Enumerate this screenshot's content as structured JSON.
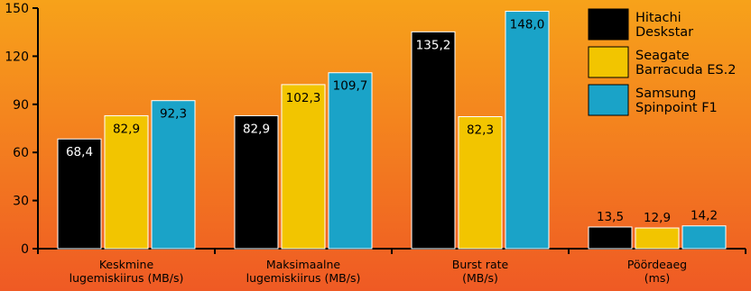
{
  "colors": {
    "bg_top": "#f7a21a",
    "bg_bottom": "#ef5a24",
    "axis": "#000000",
    "hitachi": "#000000",
    "seagate": "#f2c500",
    "samsung": "#1aa3c8",
    "bar_stroke": "#ffffff"
  },
  "chart_data": {
    "type": "bar",
    "ylim": [
      0,
      150
    ],
    "yticks": [
      0,
      30,
      60,
      90,
      120,
      150
    ],
    "categories": [
      [
        "Keskmine",
        "lugemiskiirus (MB/s)"
      ],
      [
        "Maksimaalne",
        "lugemiskiirus (MB/s)"
      ],
      [
        "Burst rate",
        "(MB/s)"
      ],
      [
        "Pöördeaeg",
        "(ms)"
      ]
    ],
    "series": [
      {
        "name": "Hitachi Deskstar",
        "legend_lines": [
          "Hitachi",
          "Deskstar"
        ],
        "color_key": "hitachi",
        "values": [
          68.4,
          82.9,
          135.2,
          13.5
        ],
        "labels": [
          "68,4",
          "82,9",
          "135,2",
          "13,5"
        ]
      },
      {
        "name": "Seagate Barracuda ES.2",
        "legend_lines": [
          "Seagate",
          "Barracuda ES.2"
        ],
        "color_key": "seagate",
        "values": [
          82.9,
          102.3,
          82.3,
          12.9
        ],
        "labels": [
          "82,9",
          "102,3",
          "82,3",
          "12,9"
        ]
      },
      {
        "name": "Samsung Spinpoint F1",
        "legend_lines": [
          "Samsung",
          "Spinpoint F1"
        ],
        "color_key": "samsung",
        "values": [
          92.3,
          109.7,
          148.0,
          14.2
        ],
        "labels": [
          "92,3",
          "109,7",
          "148,0",
          "14,2"
        ]
      }
    ],
    "legend_position": "top-right",
    "grid": false
  }
}
